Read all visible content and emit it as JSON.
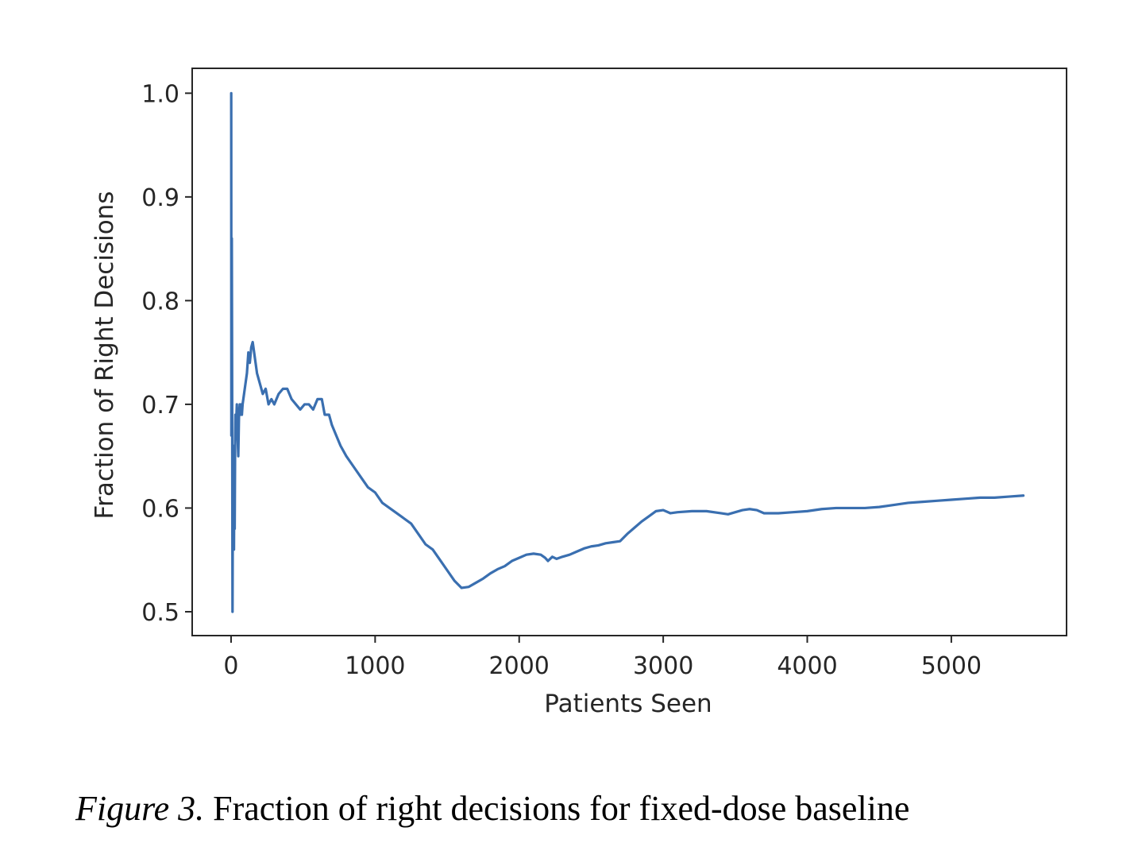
{
  "chart_data": {
    "type": "line",
    "xlabel": "Patients Seen",
    "ylabel": "Fraction of Right Decisions",
    "xlim": [
      -270,
      5800
    ],
    "ylim": [
      0.477,
      1.024
    ],
    "xticks": [
      0,
      1000,
      2000,
      3000,
      4000,
      5000
    ],
    "xtick_labels": [
      "0",
      "1000",
      "2000",
      "3000",
      "4000",
      "5000"
    ],
    "yticks": [
      0.5,
      0.6,
      0.7,
      0.8,
      0.9,
      1.0
    ],
    "ytick_labels": [
      "0.5",
      "0.6",
      "0.7",
      "0.8",
      "0.9",
      "1.0"
    ],
    "grid": false,
    "line_color": "#3a6fb0",
    "series": [
      {
        "x": [
          1,
          2,
          3,
          5,
          8,
          10,
          12,
          15,
          18,
          20,
          22,
          25,
          28,
          30,
          35,
          40,
          45,
          50,
          55,
          60,
          65,
          70,
          75,
          80,
          90,
          100,
          110,
          120,
          130,
          140,
          150,
          160,
          170,
          180,
          190,
          200,
          220,
          240,
          260,
          280,
          300,
          330,
          360,
          390,
          420,
          450,
          480,
          510,
          540,
          570,
          600,
          630,
          650,
          680,
          700,
          730,
          760,
          800,
          850,
          900,
          950,
          1000,
          1050,
          1100,
          1150,
          1200,
          1250,
          1300,
          1350,
          1400,
          1450,
          1500,
          1550,
          1600,
          1650,
          1700,
          1750,
          1800,
          1850,
          1900,
          1950,
          2000,
          2050,
          2100,
          2150,
          2180,
          2200,
          2230,
          2260,
          2300,
          2350,
          2400,
          2450,
          2500,
          2550,
          2600,
          2650,
          2700,
          2750,
          2800,
          2850,
          2900,
          2950,
          3000,
          3050,
          3100,
          3200,
          3300,
          3400,
          3450,
          3500,
          3550,
          3600,
          3650,
          3700,
          3800,
          3900,
          4000,
          4100,
          4200,
          4300,
          4400,
          4500,
          4600,
          4700,
          4800,
          4900,
          5000,
          5100,
          5200,
          5300,
          5400,
          5500
        ],
        "y": [
          1.0,
          0.67,
          0.76,
          0.86,
          0.68,
          0.5,
          0.6,
          0.66,
          0.63,
          0.56,
          0.62,
          0.58,
          0.66,
          0.69,
          0.68,
          0.7,
          0.67,
          0.65,
          0.69,
          0.7,
          0.69,
          0.7,
          0.69,
          0.7,
          0.71,
          0.72,
          0.73,
          0.75,
          0.74,
          0.755,
          0.76,
          0.75,
          0.74,
          0.73,
          0.725,
          0.72,
          0.71,
          0.715,
          0.7,
          0.705,
          0.7,
          0.71,
          0.715,
          0.715,
          0.705,
          0.7,
          0.695,
          0.7,
          0.7,
          0.695,
          0.705,
          0.705,
          0.69,
          0.69,
          0.68,
          0.67,
          0.66,
          0.65,
          0.64,
          0.63,
          0.62,
          0.615,
          0.605,
          0.6,
          0.595,
          0.59,
          0.585,
          0.575,
          0.565,
          0.56,
          0.55,
          0.54,
          0.53,
          0.523,
          0.524,
          0.528,
          0.532,
          0.537,
          0.541,
          0.544,
          0.549,
          0.552,
          0.555,
          0.556,
          0.555,
          0.552,
          0.549,
          0.553,
          0.551,
          0.553,
          0.555,
          0.558,
          0.561,
          0.563,
          0.564,
          0.566,
          0.567,
          0.568,
          0.575,
          0.581,
          0.587,
          0.592,
          0.597,
          0.598,
          0.595,
          0.596,
          0.597,
          0.597,
          0.595,
          0.594,
          0.596,
          0.598,
          0.599,
          0.598,
          0.595,
          0.595,
          0.596,
          0.597,
          0.599,
          0.6,
          0.6,
          0.6,
          0.601,
          0.603,
          0.605,
          0.606,
          0.607,
          0.608,
          0.609,
          0.61,
          0.61,
          0.611,
          0.612
        ]
      }
    ]
  },
  "caption": {
    "label": "Figure 3.",
    "text": " Fraction of right decisions for fixed-dose baseline"
  }
}
